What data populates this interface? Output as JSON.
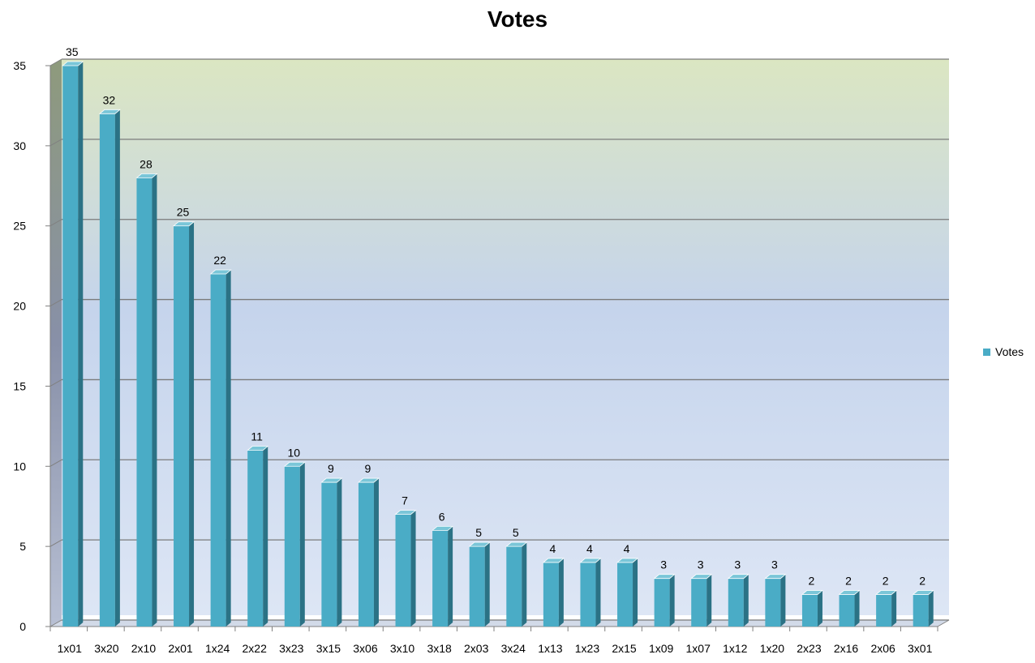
{
  "chart_data": {
    "type": "bar",
    "title": "Votes",
    "xlabel": "",
    "ylabel": "",
    "ylim": [
      0,
      35
    ],
    "yticks": [
      0,
      5,
      10,
      15,
      20,
      25,
      30,
      35
    ],
    "grid": true,
    "legend_position": "right",
    "categories": [
      "1x01",
      "3x20",
      "2x10",
      "2x01",
      "1x24",
      "2x22",
      "3x23",
      "3x15",
      "3x06",
      "3x10",
      "3x18",
      "2x03",
      "3x24",
      "1x13",
      "1x23",
      "2x15",
      "1x09",
      "1x07",
      "1x12",
      "1x20",
      "2x23",
      "2x16",
      "2x06",
      "3x01"
    ],
    "series": [
      {
        "name": "Votes",
        "values": [
          35,
          32,
          28,
          25,
          22,
          11,
          10,
          9,
          9,
          7,
          6,
          5,
          5,
          4,
          4,
          4,
          3,
          3,
          3,
          3,
          2,
          2,
          2,
          2
        ]
      }
    ]
  },
  "colors": {
    "bar_front": "#4aacc6",
    "bar_side": "#2b7285",
    "bar_top": "#7ac6d8",
    "wall_top": "#dbe6c2",
    "wall_bottom": "#dce6f4"
  }
}
